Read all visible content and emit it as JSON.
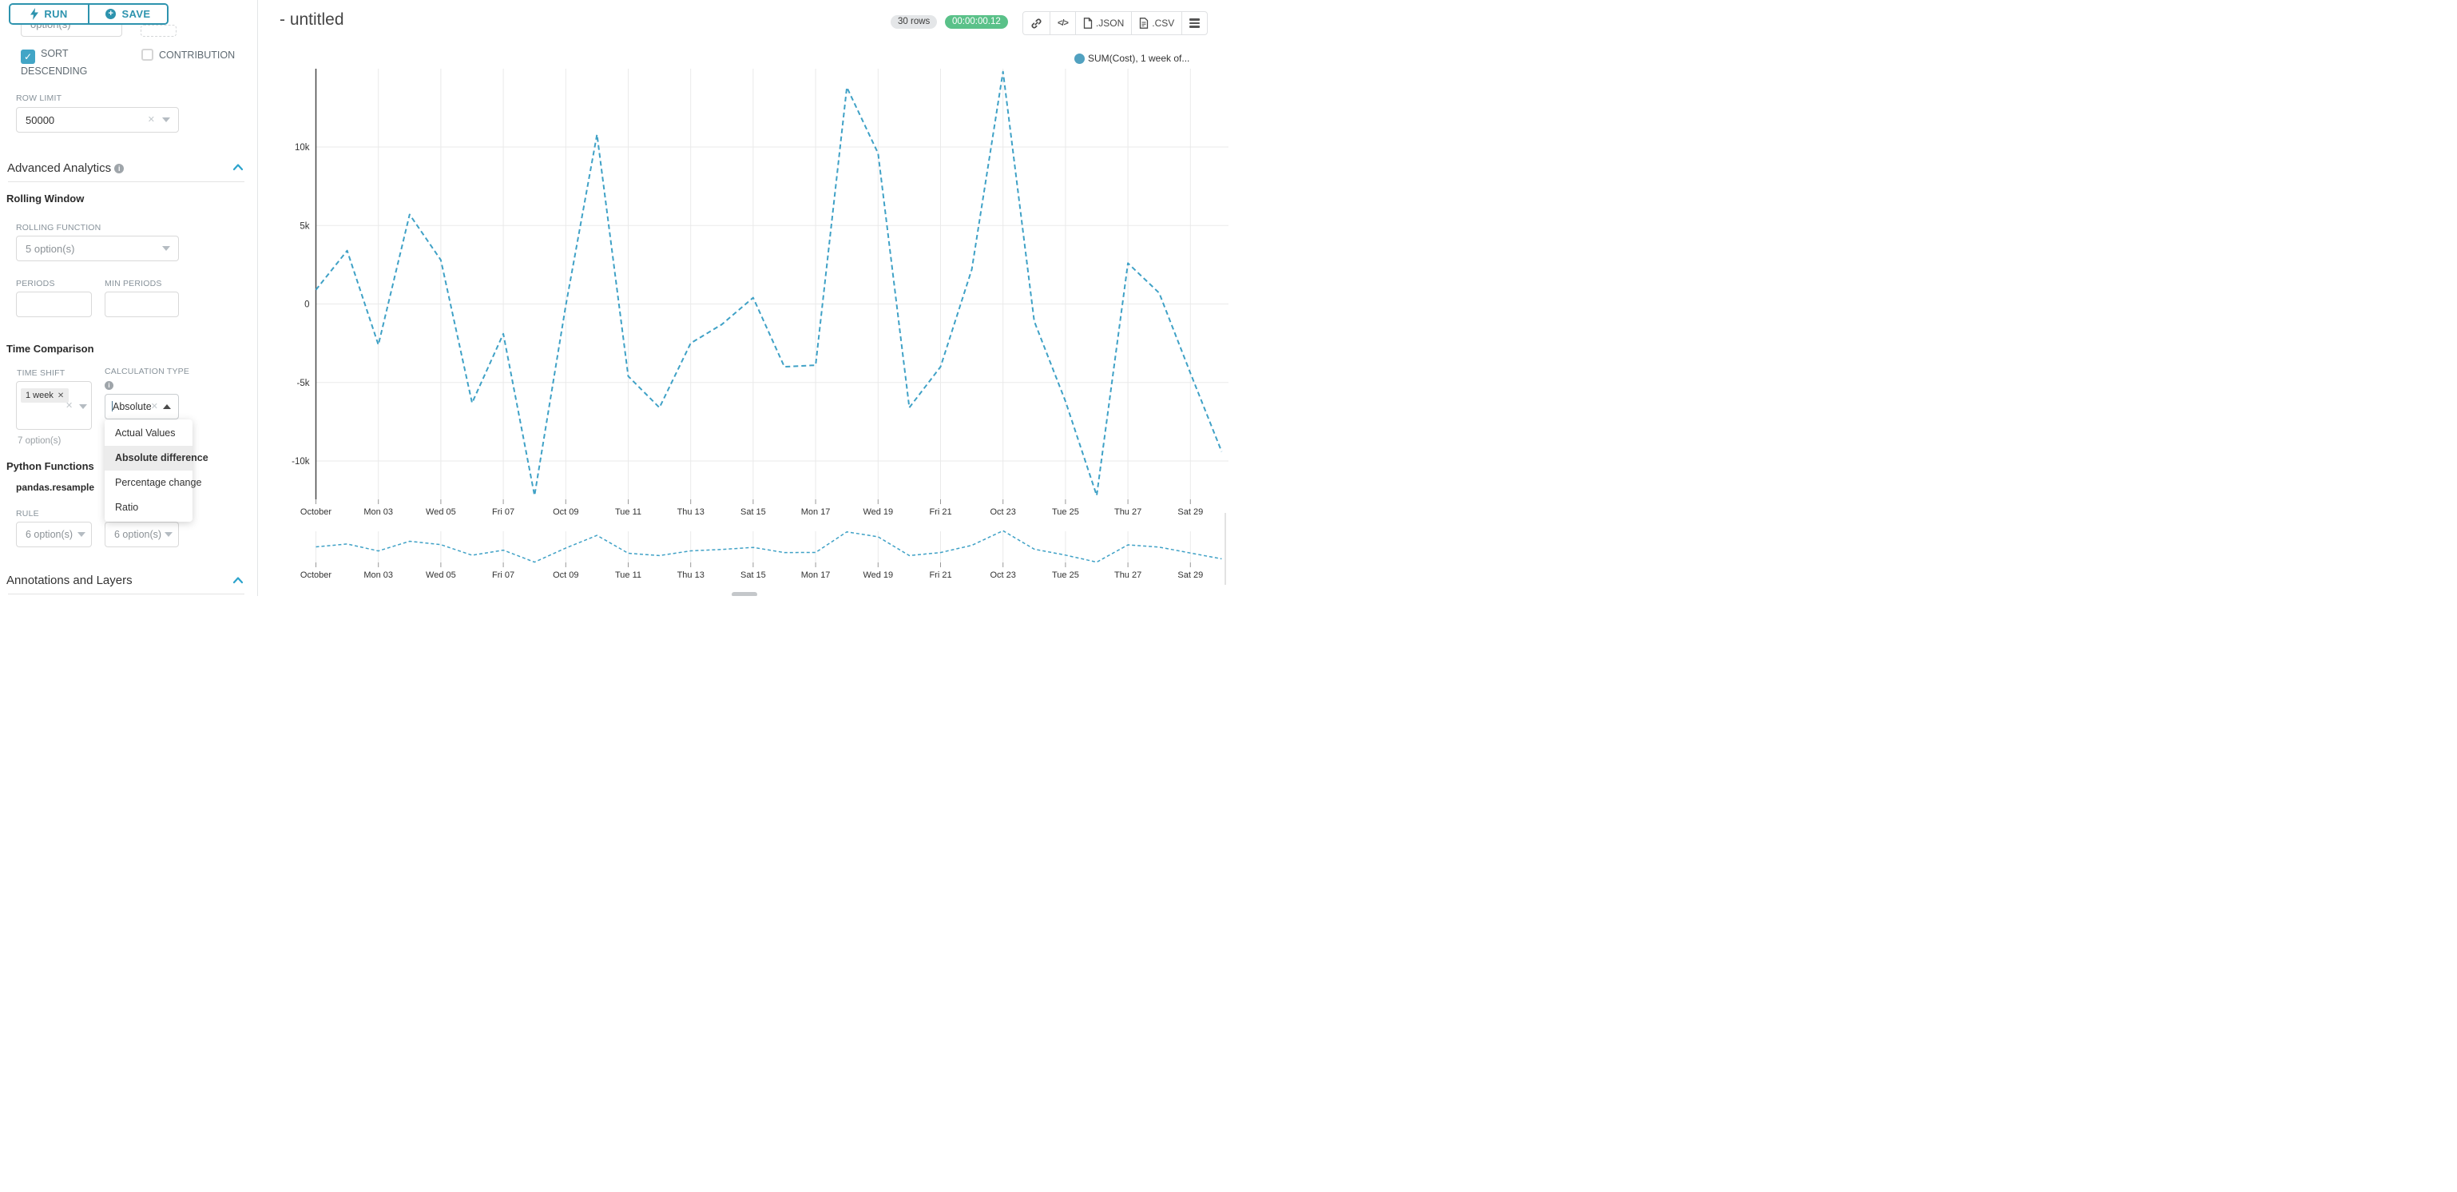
{
  "colors": {
    "accent_teal": "#2d93ae",
    "checkbox_teal": "#42a5c6",
    "chevron_blue": "#2ca3cc",
    "timer_green": "#5ac189",
    "line_blue": "#3fa1c6",
    "legend_dot": "#51a1c0"
  },
  "sidebar": {
    "run_label": "RUN",
    "save_label": "SAVE",
    "clipped_select_value": "option(s)",
    "sort_descending_label": "SORT DESCENDING",
    "contribution_label": "CONTRIBUTION",
    "row_limit": {
      "label": "ROW LIMIT",
      "value": "50000"
    },
    "advanced_analytics": {
      "title": "Advanced Analytics"
    },
    "rolling_window": {
      "heading": "Rolling Window",
      "rolling_function_label": "ROLLING FUNCTION",
      "rolling_function_value": "5 option(s)",
      "periods_label": "PERIODS",
      "min_periods_label": "MIN PERIODS"
    },
    "time_comparison": {
      "heading": "Time Comparison",
      "time_shift_label": "TIME SHIFT",
      "time_shift_tag": "1 week",
      "time_shift_helper": "7 option(s)",
      "calculation_type_label": "CALCULATION TYPE",
      "calculation_type_value": "Absolute...",
      "options": [
        {
          "label": "Actual Values"
        },
        {
          "label": "Absolute difference"
        },
        {
          "label": "Percentage change"
        },
        {
          "label": "Ratio"
        }
      ],
      "selected_index": 1
    },
    "python_functions": {
      "heading": "Python Functions",
      "subheading": "pandas.resample",
      "rule_label": "RULE",
      "rule_value": "6 option(s)",
      "method_value": "6 option(s)"
    },
    "annotations": {
      "title": "Annotations and Layers"
    }
  },
  "header": {
    "title": "- untitled",
    "rows_badge": "30 rows",
    "timer": "00:00:00.12",
    "json_label": ".JSON",
    "csv_label": ".CSV"
  },
  "chart_data": {
    "type": "line",
    "title": "",
    "legend": "SUM(Cost), 1 week of...",
    "line_color": "#3fa1c6",
    "line_style": "dashed",
    "grid": true,
    "legend_position": "top-right",
    "x_tick_labels": [
      "October",
      "Mon 03",
      "Wed 05",
      "Fri 07",
      "Oct 09",
      "Tue 11",
      "Thu 13",
      "Sat 15",
      "Mon 17",
      "Wed 19",
      "Fri 21",
      "Oct 23",
      "Tue 25",
      "Thu 27",
      "Sat 29"
    ],
    "ytick_values": [
      -10000,
      -5000,
      0,
      5000,
      10000
    ],
    "ytick_labels": [
      "-10k",
      "-5k",
      "0",
      "5k",
      "10k"
    ],
    "ylim": [
      -12500,
      15000
    ],
    "values": [
      900,
      3400,
      -2600,
      5700,
      2800,
      -6300,
      -1900,
      -12200,
      -100,
      10800,
      -4600,
      -6600,
      -2500,
      -1300,
      400,
      -4000,
      -3900,
      13800,
      9600,
      -6600,
      -4000,
      2200,
      14800,
      -1100,
      -6200,
      -12200,
      2600,
      700,
      -4400,
      -9400
    ],
    "mini_navigator": true
  }
}
